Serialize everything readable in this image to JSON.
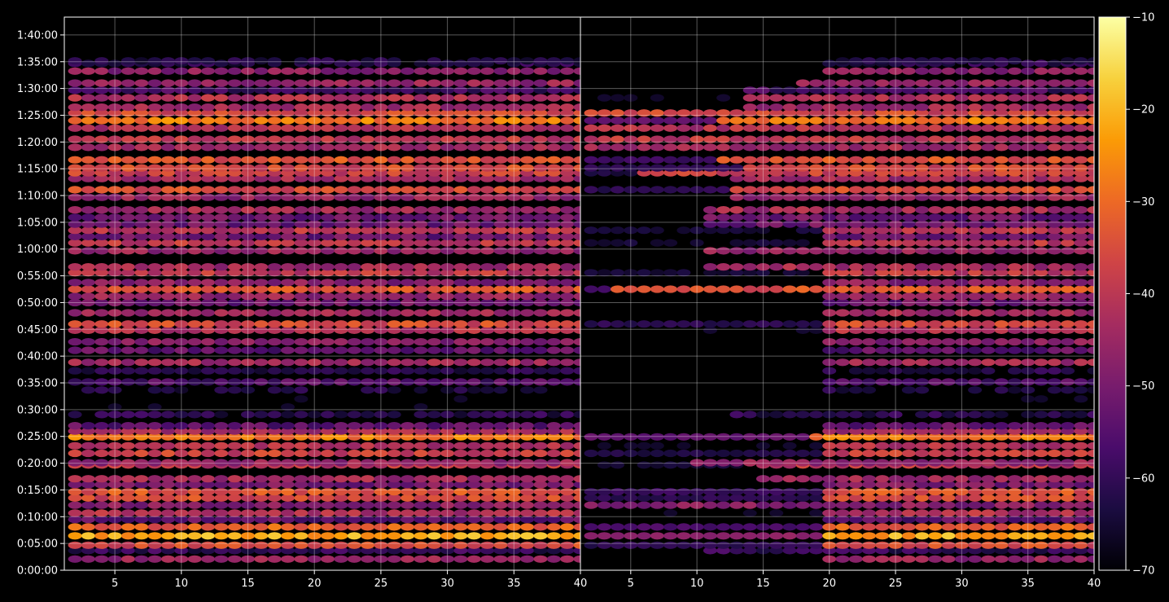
{
  "chart_data": {
    "type": "heatmap",
    "title": "",
    "xlabel": "",
    "ylabel": "",
    "grid": true,
    "background": "#000000",
    "colormap": "inferno",
    "panels": [
      {
        "name": "left",
        "xlim": [
          1.2,
          40
        ],
        "ylim_seconds": [
          0,
          6200
        ],
        "xticks": [
          5,
          10,
          15,
          20,
          25,
          30,
          35,
          40
        ],
        "xtick_labels": [
          "5",
          "10",
          "15",
          "20",
          "25",
          "30",
          "35",
          "40"
        ],
        "row_start_column": [
          2,
          2,
          2,
          2,
          2,
          2,
          2,
          2,
          2,
          2,
          2,
          2,
          2,
          2,
          2,
          2,
          2,
          2,
          2,
          2,
          2,
          2,
          2,
          2,
          2,
          2,
          2,
          2,
          2,
          2,
          2,
          2,
          2,
          2,
          2,
          2,
          2,
          2,
          2,
          2,
          2,
          2,
          2,
          2,
          2,
          2,
          2,
          2,
          2,
          2,
          2,
          2,
          2,
          2,
          2,
          2,
          2,
          2,
          2,
          2,
          2,
          2
        ]
      },
      {
        "name": "right",
        "xlim": [
          1.2,
          40
        ],
        "ylim_seconds": [
          0,
          6200
        ],
        "xticks": [
          5,
          10,
          15,
          20,
          25,
          30,
          35,
          40
        ],
        "xtick_labels": [
          "5",
          "10",
          "15",
          "20",
          "25",
          "30",
          "35",
          "40"
        ],
        "row_start_column": [
          20,
          11,
          20,
          20,
          20,
          20,
          20,
          2,
          20,
          20,
          20,
          15,
          15,
          10,
          20,
          20,
          19,
          20,
          20,
          13,
          20,
          20,
          20,
          20,
          20,
          20,
          20,
          20,
          20,
          20,
          20,
          20,
          20,
          4,
          20,
          20,
          11,
          11,
          20,
          20,
          20,
          11,
          11,
          11,
          13,
          13,
          13,
          6,
          14,
          12,
          2,
          2,
          2,
          12,
          2,
          14,
          14,
          14,
          18,
          20,
          20,
          20
        ]
      }
    ],
    "y_axis": {
      "ticks_seconds": [
        0,
        300,
        600,
        900,
        1200,
        1500,
        1800,
        2100,
        2400,
        2700,
        3000,
        3300,
        3600,
        3900,
        4200,
        4500,
        4800,
        5100,
        5400,
        5700,
        6000
      ],
      "tick_labels": [
        "0:00:00",
        "0:05:00",
        "0:10:00",
        "0:15:00",
        "0:20:00",
        "0:25:00",
        "0:30:00",
        "0:35:00",
        "0:40:00",
        "0:45:00",
        "0:50:00",
        "0:55:00",
        "1:00:00",
        "1:05:00",
        "1:10:00",
        "1:15:00",
        "1:20:00",
        "1:25:00",
        "1:30:00",
        "1:35:00",
        "1:40:00"
      ]
    },
    "rows": {
      "time_seconds": [
        125,
        220,
        280,
        385,
        485,
        570,
        640,
        730,
        810,
        880,
        960,
        1025,
        1180,
        1205,
        1310,
        1395,
        1495,
        1560,
        1620,
        1745,
        1830,
        1920,
        2020,
        2110,
        2235,
        2330,
        2465,
        2560,
        2690,
        2760,
        2885,
        3000,
        3070,
        3150,
        3225,
        3335,
        3400,
        3580,
        3670,
        3740,
        3810,
        3880,
        3955,
        4040,
        4180,
        4265,
        4390,
        4455,
        4510,
        4600,
        4740,
        4830,
        4955,
        5040,
        5125,
        5190,
        5295,
        5380,
        5460,
        5595,
        5680,
        5710
      ],
      "level_db": [
        -46,
        -60,
        -36,
        -22,
        -32,
        -54,
        -42,
        -48,
        -36,
        -34,
        -50,
        -44,
        -40,
        -46,
        -38,
        -42,
        -28,
        -44,
        -54,
        -62,
        -70,
        -70,
        -64,
        -56,
        -62,
        -44,
        -54,
        -48,
        -42,
        -36,
        -44,
        -52,
        -46,
        -34,
        -48,
        -40,
        -44,
        -46,
        -40,
        -52,
        -40,
        -52,
        -52,
        -44,
        -46,
        -36,
        -44,
        -38,
        -36,
        -34,
        -44,
        -40,
        -42,
        -28,
        -36,
        -44,
        -42,
        -58,
        -46,
        -48,
        -62,
        -64
      ]
    },
    "colorbar": {
      "range": [
        -70,
        -10
      ],
      "ticks": [
        -70,
        -60,
        -50,
        -40,
        -30,
        -20,
        -10
      ],
      "tick_labels": [
        "−70",
        "−60",
        "−50",
        "−40",
        "−30",
        "−20",
        "−10"
      ],
      "stops": [
        "#000004",
        "#1b0c41",
        "#4a0c6b",
        "#781c6d",
        "#a52c60",
        "#cf4446",
        "#ed6925",
        "#fb9b06",
        "#f7d13d",
        "#fcffa4"
      ]
    }
  }
}
